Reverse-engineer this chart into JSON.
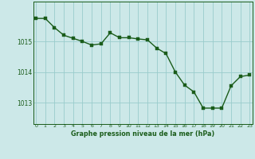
{
  "x": [
    0,
    1,
    2,
    3,
    4,
    5,
    6,
    7,
    8,
    9,
    10,
    11,
    12,
    13,
    14,
    15,
    16,
    17,
    18,
    19,
    20,
    21,
    22,
    23
  ],
  "y": [
    1015.75,
    1015.75,
    1015.45,
    1015.2,
    1015.1,
    1015.0,
    1014.88,
    1014.92,
    1015.28,
    1015.12,
    1015.12,
    1015.08,
    1015.05,
    1014.78,
    1014.6,
    1014.0,
    1013.57,
    1013.35,
    1012.82,
    1012.82,
    1012.82,
    1013.55,
    1013.85,
    1013.9
  ],
  "line_color": "#1a5c1a",
  "marker_color": "#1a5c1a",
  "bg_color": "#cce8e8",
  "grid_color": "#99cccc",
  "xlabel": "Graphe pression niveau de la mer (hPa)",
  "xlabel_color": "#1a5c1a",
  "tick_color": "#1a5c1a",
  "yticks": [
    1013,
    1014,
    1015
  ],
  "ylim": [
    1012.3,
    1016.3
  ],
  "xlim": [
    -0.3,
    23.3
  ],
  "xtick_labels": [
    "0",
    "1",
    "2",
    "3",
    "4",
    "5",
    "6",
    "7",
    "8",
    "9",
    "10",
    "11",
    "12",
    "13",
    "14",
    "15",
    "16",
    "17",
    "18",
    "19",
    "20",
    "21",
    "22",
    "23"
  ],
  "line_width": 1.0,
  "marker_size": 2.2
}
